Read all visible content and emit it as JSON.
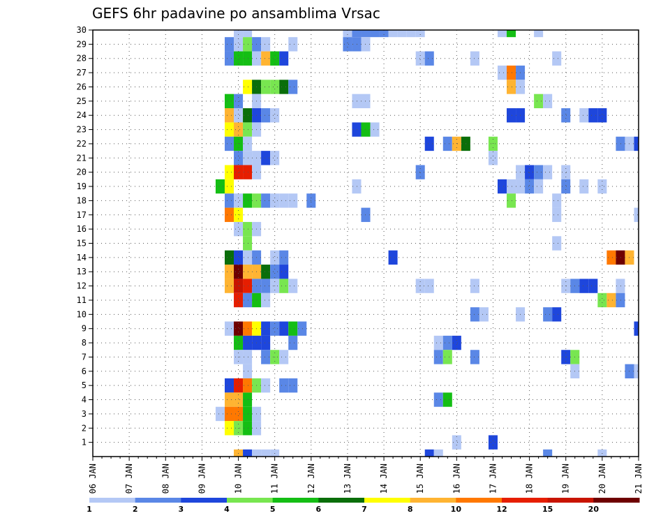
{
  "chart_data": {
    "type": "heatmap",
    "title": "GEFS 6hr padavine po ansamblima Vrsac",
    "xlabel": "",
    "ylabel": "",
    "x_ticks": [
      "06 JAN",
      "07 JAN",
      "08 JAN",
      "09 JAN",
      "10 JAN",
      "11 JAN",
      "12 JAN",
      "13 JAN",
      "14 JAN",
      "15 JAN",
      "16 JAN",
      "17 JAN",
      "18 JAN",
      "19 JAN",
      "20 JAN",
      "21 JAN"
    ],
    "y_ticks": [
      1,
      2,
      3,
      4,
      5,
      6,
      7,
      8,
      9,
      10,
      11,
      12,
      13,
      14,
      15,
      16,
      17,
      18,
      19,
      20,
      21,
      22,
      23,
      24,
      25,
      26,
      27,
      28,
      29,
      30
    ],
    "xlim": [
      0,
      60
    ],
    "ylim": [
      0,
      30
    ],
    "x_unit": "6-hour steps from 06 JAN",
    "y_unit": "ensemble member",
    "grid": true,
    "legend": {
      "placement": "bottom",
      "levels": [
        "1",
        "2",
        "3",
        "4",
        "5",
        "6",
        "7",
        "8",
        "10",
        "12",
        "15",
        "20"
      ],
      "colors": [
        "#b4c8f5",
        "#5a87e6",
        "#1e46dc",
        "#78e650",
        "#14be14",
        "#0a6e0a",
        "#ffff00",
        "#ffb432",
        "#ff7800",
        "#e61e00",
        "#c81400",
        "#6e0000"
      ]
    },
    "cells": [
      [
        16,
        30,
        1
      ],
      [
        17,
        30,
        1
      ],
      [
        28,
        30,
        1
      ],
      [
        29,
        30,
        2
      ],
      [
        30,
        30,
        2
      ],
      [
        31,
        30,
        2
      ],
      [
        32,
        30,
        2
      ],
      [
        33,
        30,
        1
      ],
      [
        34,
        30,
        1
      ],
      [
        35,
        30,
        1
      ],
      [
        36,
        30,
        1
      ],
      [
        45,
        30,
        1
      ],
      [
        46,
        30,
        5
      ],
      [
        49,
        30,
        1
      ],
      [
        15,
        29,
        2
      ],
      [
        16,
        29,
        1
      ],
      [
        17,
        29,
        4
      ],
      [
        18,
        29,
        2
      ],
      [
        19,
        29,
        1
      ],
      [
        22,
        29,
        1
      ],
      [
        28,
        29,
        2
      ],
      [
        29,
        29,
        2
      ],
      [
        30,
        29,
        1
      ],
      [
        15,
        28,
        2
      ],
      [
        16,
        28,
        5
      ],
      [
        17,
        28,
        5
      ],
      [
        18,
        28,
        1
      ],
      [
        19,
        28,
        8
      ],
      [
        20,
        28,
        5
      ],
      [
        21,
        28,
        3
      ],
      [
        36,
        28,
        1
      ],
      [
        37,
        28,
        2
      ],
      [
        42,
        28,
        1
      ],
      [
        51,
        28,
        1
      ],
      [
        45,
        27,
        1
      ],
      [
        46,
        27,
        10
      ],
      [
        47,
        27,
        2
      ],
      [
        17,
        26,
        7
      ],
      [
        18,
        26,
        6
      ],
      [
        19,
        26,
        4
      ],
      [
        20,
        26,
        4
      ],
      [
        21,
        26,
        6
      ],
      [
        22,
        26,
        2
      ],
      [
        46,
        26,
        8
      ],
      [
        47,
        26,
        1
      ],
      [
        15,
        25,
        5
      ],
      [
        16,
        25,
        2
      ],
      [
        18,
        25,
        1
      ],
      [
        29,
        25,
        1
      ],
      [
        30,
        25,
        1
      ],
      [
        49,
        25,
        4
      ],
      [
        50,
        25,
        1
      ],
      [
        15,
        24,
        8
      ],
      [
        16,
        24,
        1
      ],
      [
        17,
        24,
        6
      ],
      [
        18,
        24,
        3
      ],
      [
        19,
        24,
        2
      ],
      [
        20,
        24,
        1
      ],
      [
        46,
        24,
        3
      ],
      [
        47,
        24,
        3
      ],
      [
        52,
        24,
        2
      ],
      [
        54,
        24,
        1
      ],
      [
        55,
        24,
        3
      ],
      [
        56,
        24,
        3
      ],
      [
        15,
        23,
        7
      ],
      [
        16,
        23,
        8
      ],
      [
        17,
        23,
        4
      ],
      [
        18,
        23,
        1
      ],
      [
        29,
        23,
        3
      ],
      [
        30,
        23,
        5
      ],
      [
        31,
        23,
        1
      ],
      [
        15,
        22,
        2
      ],
      [
        16,
        22,
        5
      ],
      [
        17,
        22,
        1
      ],
      [
        37,
        22,
        3
      ],
      [
        39,
        22,
        2
      ],
      [
        40,
        22,
        8
      ],
      [
        41,
        22,
        6
      ],
      [
        44,
        22,
        4
      ],
      [
        58,
        22,
        2
      ],
      [
        59,
        22,
        1
      ],
      [
        60,
        22,
        3
      ],
      [
        16,
        21,
        2
      ],
      [
        17,
        21,
        1
      ],
      [
        18,
        21,
        1
      ],
      [
        19,
        21,
        3
      ],
      [
        20,
        21,
        1
      ],
      [
        44,
        21,
        1
      ],
      [
        15,
        20,
        7
      ],
      [
        16,
        20,
        12
      ],
      [
        17,
        20,
        12
      ],
      [
        18,
        20,
        1
      ],
      [
        36,
        20,
        2
      ],
      [
        47,
        20,
        1
      ],
      [
        48,
        20,
        3
      ],
      [
        49,
        20,
        2
      ],
      [
        50,
        20,
        1
      ],
      [
        52,
        20,
        1
      ],
      [
        14,
        19,
        5
      ],
      [
        15,
        19,
        7
      ],
      [
        29,
        19,
        1
      ],
      [
        45,
        19,
        3
      ],
      [
        46,
        19,
        1
      ],
      [
        47,
        19,
        1
      ],
      [
        48,
        19,
        2
      ],
      [
        49,
        19,
        1
      ],
      [
        52,
        19,
        2
      ],
      [
        54,
        19,
        1
      ],
      [
        56,
        19,
        1
      ],
      [
        15,
        18,
        2
      ],
      [
        16,
        18,
        1
      ],
      [
        17,
        18,
        5
      ],
      [
        18,
        18,
        4
      ],
      [
        19,
        18,
        2
      ],
      [
        20,
        18,
        1
      ],
      [
        21,
        18,
        1
      ],
      [
        22,
        18,
        1
      ],
      [
        24,
        18,
        2
      ],
      [
        46,
        18,
        4
      ],
      [
        51,
        18,
        1
      ],
      [
        15,
        17,
        10
      ],
      [
        16,
        17,
        7
      ],
      [
        30,
        17,
        2
      ],
      [
        51,
        17,
        1
      ],
      [
        60,
        17,
        1
      ],
      [
        16,
        16,
        1
      ],
      [
        17,
        16,
        4
      ],
      [
        18,
        16,
        1
      ],
      [
        17,
        15,
        4
      ],
      [
        51,
        15,
        1
      ],
      [
        15,
        14,
        6
      ],
      [
        16,
        14,
        3
      ],
      [
        17,
        14,
        1
      ],
      [
        18,
        14,
        2
      ],
      [
        20,
        14,
        1
      ],
      [
        21,
        14,
        2
      ],
      [
        33,
        14,
        3
      ],
      [
        57,
        14,
        10
      ],
      [
        58,
        14,
        20
      ],
      [
        59,
        14,
        8
      ],
      [
        15,
        13,
        8
      ],
      [
        16,
        13,
        20
      ],
      [
        17,
        13,
        8
      ],
      [
        18,
        13,
        8
      ],
      [
        19,
        13,
        6
      ],
      [
        20,
        13,
        2
      ],
      [
        21,
        13,
        3
      ],
      [
        15,
        12,
        8
      ],
      [
        16,
        12,
        15
      ],
      [
        17,
        12,
        12
      ],
      [
        18,
        12,
        2
      ],
      [
        19,
        12,
        2
      ],
      [
        20,
        12,
        1
      ],
      [
        21,
        12,
        4
      ],
      [
        22,
        12,
        1
      ],
      [
        36,
        12,
        1
      ],
      [
        37,
        12,
        1
      ],
      [
        42,
        12,
        1
      ],
      [
        52,
        12,
        1
      ],
      [
        53,
        12,
        2
      ],
      [
        54,
        12,
        3
      ],
      [
        55,
        12,
        3
      ],
      [
        58,
        12,
        1
      ],
      [
        16,
        11,
        12
      ],
      [
        17,
        11,
        2
      ],
      [
        18,
        11,
        5
      ],
      [
        19,
        11,
        1
      ],
      [
        56,
        11,
        4
      ],
      [
        57,
        11,
        8
      ],
      [
        58,
        11,
        2
      ],
      [
        42,
        10,
        2
      ],
      [
        43,
        10,
        1
      ],
      [
        47,
        10,
        1
      ],
      [
        50,
        10,
        2
      ],
      [
        51,
        10,
        3
      ],
      [
        15,
        9,
        1
      ],
      [
        16,
        9,
        20
      ],
      [
        17,
        9,
        10
      ],
      [
        18,
        9,
        7
      ],
      [
        19,
        9,
        3
      ],
      [
        20,
        9,
        2
      ],
      [
        21,
        9,
        3
      ],
      [
        22,
        9,
        5
      ],
      [
        23,
        9,
        2
      ],
      [
        60,
        9,
        3
      ],
      [
        16,
        8,
        5
      ],
      [
        17,
        8,
        3
      ],
      [
        18,
        8,
        3
      ],
      [
        19,
        8,
        3
      ],
      [
        22,
        8,
        2
      ],
      [
        38,
        8,
        1
      ],
      [
        39,
        8,
        2
      ],
      [
        40,
        8,
        3
      ],
      [
        16,
        7,
        1
      ],
      [
        17,
        7,
        1
      ],
      [
        19,
        7,
        2
      ],
      [
        20,
        7,
        4
      ],
      [
        21,
        7,
        1
      ],
      [
        38,
        7,
        2
      ],
      [
        39,
        7,
        4
      ],
      [
        42,
        7,
        2
      ],
      [
        52,
        7,
        3
      ],
      [
        53,
        7,
        4
      ],
      [
        17,
        6,
        1
      ],
      [
        53,
        6,
        1
      ],
      [
        59,
        6,
        2
      ],
      [
        60,
        6,
        1
      ],
      [
        15,
        5,
        3
      ],
      [
        16,
        5,
        12
      ],
      [
        17,
        5,
        10
      ],
      [
        18,
        5,
        4
      ],
      [
        19,
        5,
        1
      ],
      [
        21,
        5,
        2
      ],
      [
        22,
        5,
        2
      ],
      [
        15,
        4,
        8
      ],
      [
        16,
        4,
        8
      ],
      [
        17,
        4,
        5
      ],
      [
        38,
        4,
        2
      ],
      [
        39,
        4,
        5
      ],
      [
        14,
        3,
        1
      ],
      [
        15,
        3,
        10
      ],
      [
        16,
        3,
        10
      ],
      [
        17,
        3,
        5
      ],
      [
        18,
        3,
        1
      ],
      [
        15,
        2,
        7
      ],
      [
        16,
        2,
        4
      ],
      [
        17,
        2,
        5
      ],
      [
        18,
        2,
        1
      ],
      [
        40,
        1,
        1
      ],
      [
        44,
        1,
        3
      ],
      [
        16,
        0,
        8
      ],
      [
        17,
        0,
        3
      ],
      [
        18,
        0,
        1
      ],
      [
        19,
        0,
        1
      ],
      [
        20,
        0,
        1
      ],
      [
        37,
        0,
        3
      ],
      [
        38,
        0,
        1
      ],
      [
        50,
        0,
        2
      ],
      [
        56,
        0,
        1
      ]
    ]
  }
}
